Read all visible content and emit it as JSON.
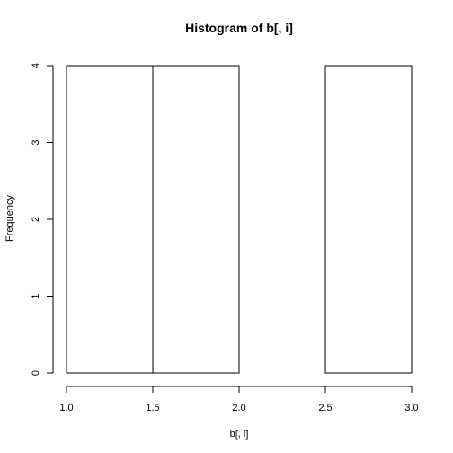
{
  "chart_data": {
    "type": "bar",
    "title": "Histogram of b[, i]",
    "xlabel": "b[, i]",
    "ylabel": "Frequency",
    "bins": [
      {
        "from": 1.0,
        "to": 1.5,
        "count": 4
      },
      {
        "from": 1.5,
        "to": 2.0,
        "count": 4
      },
      {
        "from": 2.0,
        "to": 2.5,
        "count": 0
      },
      {
        "from": 2.5,
        "to": 3.0,
        "count": 4
      }
    ],
    "xlim": [
      1.0,
      3.0
    ],
    "ylim": [
      0,
      4
    ],
    "x_ticks": [
      "1.0",
      "1.5",
      "2.0",
      "2.5",
      "3.0"
    ],
    "y_ticks": [
      "0",
      "1",
      "2",
      "3",
      "4"
    ],
    "grid": false,
    "legend": "none"
  }
}
